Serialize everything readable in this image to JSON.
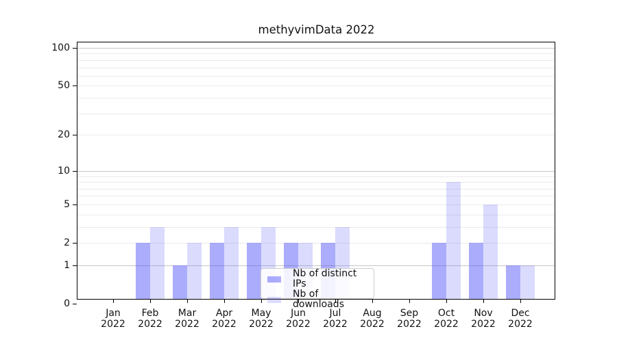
{
  "chart_data": {
    "type": "bar",
    "title": "methyvimData 2022",
    "categories": [
      {
        "month": "Jan",
        "year": "2022"
      },
      {
        "month": "Feb",
        "year": "2022"
      },
      {
        "month": "Mar",
        "year": "2022"
      },
      {
        "month": "Apr",
        "year": "2022"
      },
      {
        "month": "May",
        "year": "2022"
      },
      {
        "month": "Jun",
        "year": "2022"
      },
      {
        "month": "Jul",
        "year": "2022"
      },
      {
        "month": "Aug",
        "year": "2022"
      },
      {
        "month": "Sep",
        "year": "2022"
      },
      {
        "month": "Oct",
        "year": "2022"
      },
      {
        "month": "Nov",
        "year": "2022"
      },
      {
        "month": "Dec",
        "year": "2022"
      }
    ],
    "series": [
      {
        "name": "Nb of distinct IPs",
        "color": "rgba(85,85,250,0.49)",
        "values": [
          0,
          2,
          1,
          2,
          2,
          2,
          2,
          0,
          0,
          2,
          2,
          1
        ]
      },
      {
        "name": "Nb of downloads",
        "color": "rgba(85,85,250,0.21)",
        "values": [
          0,
          3,
          2,
          3,
          3,
          2,
          3,
          0,
          0,
          8,
          5,
          1
        ]
      }
    ],
    "y_axis": {
      "scale": "log10(value+1)",
      "ticks": [
        0,
        1,
        2,
        5,
        10,
        20,
        50,
        100
      ],
      "major_gridlines": [
        1,
        10,
        100
      ],
      "minor_gridlines": [
        2,
        3,
        4,
        5,
        6,
        7,
        8,
        9,
        20,
        30,
        40,
        50,
        60,
        70,
        80,
        90
      ],
      "ylim": [
        0,
        110
      ]
    },
    "x_axis": {
      "tick_label_format": "month over year"
    },
    "legend": {
      "position": "lower center",
      "entries": [
        "Nb of distinct IPs",
        "Nb of downloads"
      ]
    },
    "grid": true,
    "colors": {
      "bar_base": "#5555fa",
      "grid_major": "#c6c6c6",
      "grid_minor": "#eaeaea",
      "frame": "#000000"
    }
  }
}
